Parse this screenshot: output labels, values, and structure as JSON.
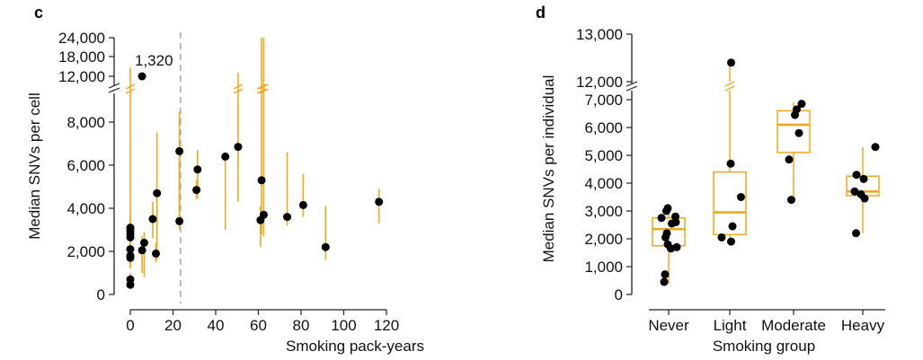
{
  "chart_data": [
    {
      "panel_label": "c",
      "type": "scatter",
      "xlabel": "Smoking pack-years",
      "ylabel": "Median SNVs per cell",
      "xlim": [
        0,
        120
      ],
      "x_ticks": [
        0,
        20,
        40,
        60,
        80,
        100,
        120
      ],
      "x_tick_labels": [
        "0",
        "20",
        "40",
        "60",
        "80",
        "100",
        "120"
      ],
      "y_axis_broken": true,
      "y_ticks_lower": [
        0,
        2000,
        4000,
        6000,
        8000
      ],
      "y_tick_labels_lower": [
        "0",
        "2,000",
        "4,000",
        "6,000",
        "8,000"
      ],
      "y_ticks_upper": [
        12000,
        18000,
        24000
      ],
      "y_tick_labels_upper": [
        "12,000",
        "18,000",
        "24,000"
      ],
      "reference_line_x": 23.5,
      "annotation": "1,320",
      "color_points": "#000000",
      "color_ranges": "#f2a81d",
      "color_refline": "#aaaaaa",
      "points": [
        {
          "x": 0,
          "y": 450,
          "lo": 300,
          "hi": 600
        },
        {
          "x": 0,
          "y": 700,
          "lo": 500,
          "hi": 1000
        },
        {
          "x": 0,
          "y": 1700,
          "lo": 1200,
          "hi": 2200
        },
        {
          "x": 0,
          "y": 1800,
          "lo": 1300,
          "hi": 2400
        },
        {
          "x": 0,
          "y": 2100,
          "lo": 1700,
          "hi": 2600
        },
        {
          "x": 0,
          "y": 2650,
          "lo": 2000,
          "hi": 3200
        },
        {
          "x": 0,
          "y": 2800,
          "lo": 2100,
          "hi": 3400
        },
        {
          "x": 0,
          "y": 2950,
          "lo": 2300,
          "hi": 3700
        },
        {
          "x": 0,
          "y": 3100,
          "lo": 2000,
          "hi": 14500
        },
        {
          "x": 5.5,
          "y": 12000,
          "lo": null,
          "hi": null
        },
        {
          "x": 5.5,
          "y": 2050,
          "lo": 1000,
          "hi": 2700
        },
        {
          "x": 6.5,
          "y": 2400,
          "lo": 800,
          "hi": 2900
        },
        {
          "x": 10.5,
          "y": 3500,
          "lo": 2600,
          "hi": 4300
        },
        {
          "x": 12,
          "y": 1900,
          "lo": 1500,
          "hi": 2400
        },
        {
          "x": 12.5,
          "y": 4700,
          "lo": 1600,
          "hi": 7500
        },
        {
          "x": 23,
          "y": 3400,
          "lo": 3200,
          "hi": 6700
        },
        {
          "x": 23,
          "y": 6650,
          "lo": 3000,
          "hi": 8500
        },
        {
          "x": 31,
          "y": 4850,
          "lo": 4400,
          "hi": 5300
        },
        {
          "x": 31.5,
          "y": 5800,
          "lo": 4500,
          "hi": 6700
        },
        {
          "x": 44.5,
          "y": 6400,
          "lo": 3000,
          "hi": 6600
        },
        {
          "x": 50.5,
          "y": 6850,
          "lo": 4300,
          "hi": 13000
        },
        {
          "x": 61,
          "y": 3450,
          "lo": 2200,
          "hi": 4100
        },
        {
          "x": 61.5,
          "y": 5300,
          "lo": 2800,
          "hi": 24000
        },
        {
          "x": 62.5,
          "y": 3700,
          "lo": 2700,
          "hi": 24000
        },
        {
          "x": 73.5,
          "y": 3600,
          "lo": 3200,
          "hi": 6600
        },
        {
          "x": 81,
          "y": 4150,
          "lo": 3600,
          "hi": 5600
        },
        {
          "x": 91.5,
          "y": 2200,
          "lo": 1600,
          "hi": 4100
        },
        {
          "x": 116.5,
          "y": 4300,
          "lo": 3300,
          "hi": 4900
        }
      ]
    },
    {
      "panel_label": "d",
      "type": "box",
      "xlabel": "Smoking group",
      "ylabel": "Median SNVs per individual",
      "categories": [
        "Never",
        "Light",
        "Moderate",
        "Heavy"
      ],
      "y_axis_broken": true,
      "y_ticks_lower": [
        0,
        1000,
        2000,
        3000,
        4000,
        5000,
        6000,
        7000
      ],
      "y_tick_labels_lower": [
        "0",
        "1,000",
        "2,000",
        "3,000",
        "4,000",
        "5,000",
        "6,000",
        "7,000"
      ],
      "y_ticks_upper": [
        12000,
        13000
      ],
      "y_tick_labels_upper": [
        "12,000",
        "13,000"
      ],
      "color_box": "#f2a81d",
      "color_points": "#000000",
      "boxes": [
        {
          "category": "Never",
          "q1": 1750,
          "median": 2350,
          "q3": 2750,
          "whisker_low": 400,
          "whisker_high": 3000
        },
        {
          "category": "Light",
          "q1": 2150,
          "median": 2950,
          "q3": 4400,
          "whisker_low": 1900,
          "whisker_high": 12400
        },
        {
          "category": "Moderate",
          "q1": 5100,
          "median": 6100,
          "q3": 6600,
          "whisker_low": 3400,
          "whisker_high": 6900
        },
        {
          "category": "Heavy",
          "q1": 3550,
          "median": 3700,
          "q3": 4250,
          "whisker_low": 2200,
          "whisker_high": 5300
        }
      ],
      "points": [
        {
          "category": "Never",
          "jitter": -0.1,
          "y": 450
        },
        {
          "category": "Never",
          "jitter": -0.08,
          "y": 720
        },
        {
          "category": "Never",
          "jitter": 0.05,
          "y": 1650
        },
        {
          "category": "Never",
          "jitter": 0.18,
          "y": 1700
        },
        {
          "category": "Never",
          "jitter": -0.02,
          "y": 1800
        },
        {
          "category": "Never",
          "jitter": -0.07,
          "y": 2050
        },
        {
          "category": "Never",
          "jitter": -0.04,
          "y": 2200
        },
        {
          "category": "Never",
          "jitter": 0.07,
          "y": 2550
        },
        {
          "category": "Never",
          "jitter": 0.16,
          "y": 2600
        },
        {
          "category": "Never",
          "jitter": -0.16,
          "y": 2750
        },
        {
          "category": "Never",
          "jitter": 0.15,
          "y": 2800
        },
        {
          "category": "Never",
          "jitter": -0.05,
          "y": 3000
        },
        {
          "category": "Never",
          "jitter": -0.02,
          "y": 3100
        },
        {
          "category": "Light",
          "jitter": -0.18,
          "y": 2050
        },
        {
          "category": "Light",
          "jitter": 0.03,
          "y": 1900
        },
        {
          "category": "Light",
          "jitter": 0.06,
          "y": 2450
        },
        {
          "category": "Light",
          "jitter": 0.25,
          "y": 3500
        },
        {
          "category": "Light",
          "jitter": 0.02,
          "y": 4700
        },
        {
          "category": "Light",
          "jitter": 0.03,
          "y": 12400
        },
        {
          "category": "Moderate",
          "jitter": -0.05,
          "y": 3400
        },
        {
          "category": "Moderate",
          "jitter": -0.1,
          "y": 4850
        },
        {
          "category": "Moderate",
          "jitter": 0.12,
          "y": 5800
        },
        {
          "category": "Moderate",
          "jitter": 0.03,
          "y": 6450
        },
        {
          "category": "Moderate",
          "jitter": 0.07,
          "y": 6650
        },
        {
          "category": "Moderate",
          "jitter": 0.18,
          "y": 6850
        },
        {
          "category": "Heavy",
          "jitter": -0.15,
          "y": 2200
        },
        {
          "category": "Heavy",
          "jitter": 0.04,
          "y": 3450
        },
        {
          "category": "Heavy",
          "jitter": -0.04,
          "y": 3600
        },
        {
          "category": "Heavy",
          "jitter": -0.18,
          "y": 3700
        },
        {
          "category": "Heavy",
          "jitter": 0.02,
          "y": 4150
        },
        {
          "category": "Heavy",
          "jitter": -0.14,
          "y": 4300
        },
        {
          "category": "Heavy",
          "jitter": 0.28,
          "y": 5300
        }
      ]
    }
  ]
}
